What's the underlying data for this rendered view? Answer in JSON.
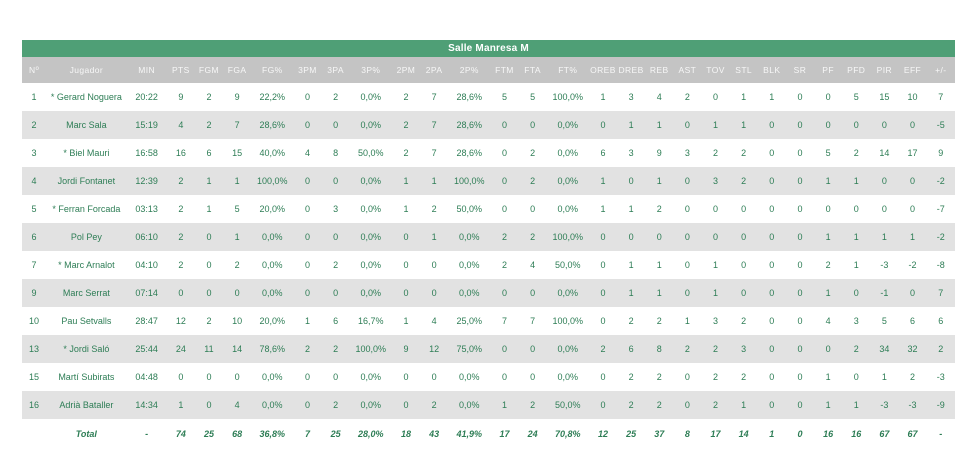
{
  "header": {
    "title": "Salle Manresa M"
  },
  "colors": {
    "title_bg": "#4f9f76",
    "header_bg": "#c4c4c4",
    "header_text": "#f7f7f7",
    "row_alt_bg": "#e2e2e2",
    "text_green": "#2d7d55",
    "page_bg": "#ffffff"
  },
  "table": {
    "columns": [
      "Nº",
      "Jugador",
      "MIN",
      "PTS",
      "FGM",
      "FGA",
      "FG%",
      "3PM",
      "3PA",
      "3P%",
      "2PM",
      "2PA",
      "2P%",
      "FTM",
      "FTA",
      "FT%",
      "OREB",
      "DREB",
      "REB",
      "AST",
      "TOV",
      "STL",
      "BLK",
      "SR",
      "PF",
      "PFD",
      "PIR",
      "EFF",
      "+/-"
    ],
    "starter_marker": "*",
    "rows": [
      [
        "1",
        "* Gerard Noguera",
        "20:22",
        "9",
        "2",
        "9",
        "22,2%",
        "0",
        "2",
        "0,0%",
        "2",
        "7",
        "28,6%",
        "5",
        "5",
        "100,0%",
        "1",
        "3",
        "4",
        "2",
        "0",
        "1",
        "1",
        "0",
        "0",
        "5",
        "15",
        "10",
        "7"
      ],
      [
        "2",
        "Marc Sala",
        "15:19",
        "4",
        "2",
        "7",
        "28,6%",
        "0",
        "0",
        "0,0%",
        "2",
        "7",
        "28,6%",
        "0",
        "0",
        "0,0%",
        "0",
        "1",
        "1",
        "0",
        "1",
        "1",
        "0",
        "0",
        "0",
        "0",
        "0",
        "0",
        "-5"
      ],
      [
        "3",
        "* Biel Mauri",
        "16:58",
        "16",
        "6",
        "15",
        "40,0%",
        "4",
        "8",
        "50,0%",
        "2",
        "7",
        "28,6%",
        "0",
        "2",
        "0,0%",
        "6",
        "3",
        "9",
        "3",
        "2",
        "2",
        "0",
        "0",
        "5",
        "2",
        "14",
        "17",
        "9"
      ],
      [
        "4",
        "Jordi Fontanet",
        "12:39",
        "2",
        "1",
        "1",
        "100,0%",
        "0",
        "0",
        "0,0%",
        "1",
        "1",
        "100,0%",
        "0",
        "2",
        "0,0%",
        "1",
        "0",
        "1",
        "0",
        "3",
        "2",
        "0",
        "0",
        "1",
        "1",
        "0",
        "0",
        "-2"
      ],
      [
        "5",
        "* Ferran Forcada",
        "03:13",
        "2",
        "1",
        "5",
        "20,0%",
        "0",
        "3",
        "0,0%",
        "1",
        "2",
        "50,0%",
        "0",
        "0",
        "0,0%",
        "1",
        "1",
        "2",
        "0",
        "0",
        "0",
        "0",
        "0",
        "0",
        "0",
        "0",
        "0",
        "-7"
      ],
      [
        "6",
        "Pol Pey",
        "06:10",
        "2",
        "0",
        "1",
        "0,0%",
        "0",
        "0",
        "0,0%",
        "0",
        "1",
        "0,0%",
        "2",
        "2",
        "100,0%",
        "0",
        "0",
        "0",
        "0",
        "0",
        "0",
        "0",
        "0",
        "1",
        "1",
        "1",
        "1",
        "-2"
      ],
      [
        "7",
        "* Marc Arnalot",
        "04:10",
        "2",
        "0",
        "2",
        "0,0%",
        "0",
        "2",
        "0,0%",
        "0",
        "0",
        "0,0%",
        "2",
        "4",
        "50,0%",
        "0",
        "1",
        "1",
        "0",
        "1",
        "0",
        "0",
        "0",
        "2",
        "1",
        "-3",
        "-2",
        "-8"
      ],
      [
        "9",
        "Marc Serrat",
        "07:14",
        "0",
        "0",
        "0",
        "0,0%",
        "0",
        "0",
        "0,0%",
        "0",
        "0",
        "0,0%",
        "0",
        "0",
        "0,0%",
        "0",
        "1",
        "1",
        "0",
        "1",
        "0",
        "0",
        "0",
        "1",
        "0",
        "-1",
        "0",
        "7"
      ],
      [
        "10",
        "Pau Setvalls",
        "28:47",
        "12",
        "2",
        "10",
        "20,0%",
        "1",
        "6",
        "16,7%",
        "1",
        "4",
        "25,0%",
        "7",
        "7",
        "100,0%",
        "0",
        "2",
        "2",
        "1",
        "3",
        "2",
        "0",
        "0",
        "4",
        "3",
        "5",
        "6",
        "6"
      ],
      [
        "13",
        "* Jordi Saló",
        "25:44",
        "24",
        "11",
        "14",
        "78,6%",
        "2",
        "2",
        "100,0%",
        "9",
        "12",
        "75,0%",
        "0",
        "0",
        "0,0%",
        "2",
        "6",
        "8",
        "2",
        "2",
        "3",
        "0",
        "0",
        "0",
        "2",
        "34",
        "32",
        "2"
      ],
      [
        "15",
        "Martí Subirats",
        "04:48",
        "0",
        "0",
        "0",
        "0,0%",
        "0",
        "0",
        "0,0%",
        "0",
        "0",
        "0,0%",
        "0",
        "0",
        "0,0%",
        "0",
        "2",
        "2",
        "0",
        "2",
        "2",
        "0",
        "0",
        "1",
        "0",
        "1",
        "2",
        "-3"
      ],
      [
        "16",
        "Adrià Bataller",
        "14:34",
        "1",
        "0",
        "4",
        "0,0%",
        "0",
        "2",
        "0,0%",
        "0",
        "2",
        "0,0%",
        "1",
        "2",
        "50,0%",
        "0",
        "2",
        "2",
        "0",
        "2",
        "1",
        "0",
        "0",
        "1",
        "1",
        "-3",
        "-3",
        "-9"
      ]
    ],
    "total": [
      "",
      "Total",
      "-",
      "74",
      "25",
      "68",
      "36,8%",
      "7",
      "25",
      "28,0%",
      "18",
      "43",
      "41,9%",
      "17",
      "24",
      "70,8%",
      "12",
      "25",
      "37",
      "8",
      "17",
      "14",
      "1",
      "0",
      "16",
      "16",
      "67",
      "67",
      "-"
    ]
  }
}
